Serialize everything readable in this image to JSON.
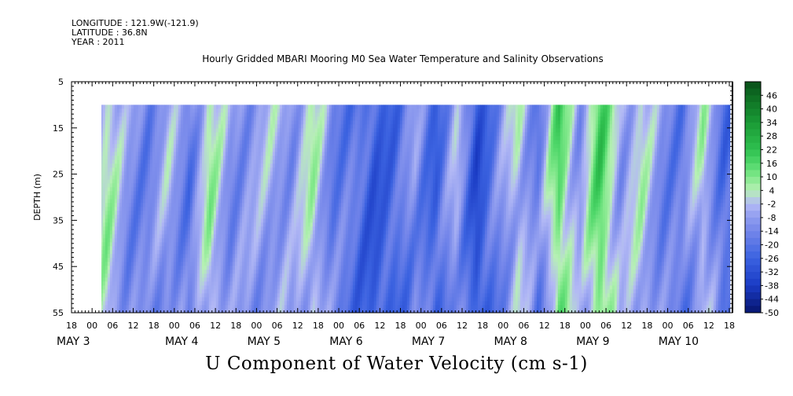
{
  "meta": {
    "longitude": "LONGITUDE : 121.9W(-121.9)",
    "latitude": "LATITUDE : 36.8N",
    "year": "YEAR : 2011"
  },
  "chart_data": {
    "type": "heatmap",
    "title": "Hourly Gridded MBARI Mooring M0 Sea Water Temperature and Salinity Observations",
    "subtitle": "U Component of Water Velocity (cm s-1)",
    "ylabel": "DEPTH (m)",
    "xlabel": "",
    "ylim": [
      55,
      5
    ],
    "y_ticks": [
      5,
      15,
      25,
      35,
      45,
      55
    ],
    "x_hour_ticks": [
      "18",
      "00",
      "06",
      "12",
      "18",
      "00",
      "06",
      "12",
      "18",
      "00",
      "06",
      "12",
      "18",
      "00",
      "06",
      "12",
      "18",
      "00",
      "06",
      "12",
      "18",
      "00",
      "06",
      "12",
      "18",
      "00",
      "06",
      "12",
      "18",
      "00",
      "06",
      "12",
      "18"
    ],
    "x_day_labels": [
      "MAY  3",
      "MAY  4",
      "MAY  5",
      "MAY  6",
      "MAY  7",
      "MAY  8",
      "MAY  9",
      "MAY 10"
    ],
    "data_depth_range": [
      10,
      55
    ],
    "colorbar": {
      "labels": [
        "46",
        "40",
        "34",
        "28",
        "22",
        "16",
        "10",
        "4",
        "-2",
        "-8",
        "-14",
        "-20",
        "-26",
        "-32",
        "-38",
        "-44",
        "-50"
      ],
      "min": -50,
      "max": 52
    },
    "band_velocity_profile": {
      "description_x": "hours since MAY 2 18:00",
      "x": [
        0,
        6,
        10,
        16,
        22,
        28,
        34,
        40,
        46,
        52,
        58,
        64,
        70,
        76,
        82,
        88,
        94,
        100,
        106,
        112,
        118,
        124,
        130,
        136,
        142,
        148,
        154,
        160,
        166,
        172,
        178,
        184,
        190
      ],
      "u_cm_s": [
        null,
        0,
        6,
        -10,
        -14,
        -4,
        -16,
        6,
        -10,
        -8,
        -4,
        -8,
        4,
        -14,
        -18,
        -26,
        -22,
        -10,
        -24,
        -4,
        -30,
        -14,
        2,
        -16,
        16,
        -8,
        18,
        -6,
        2,
        -12,
        -16,
        2,
        -20
      ]
    }
  }
}
